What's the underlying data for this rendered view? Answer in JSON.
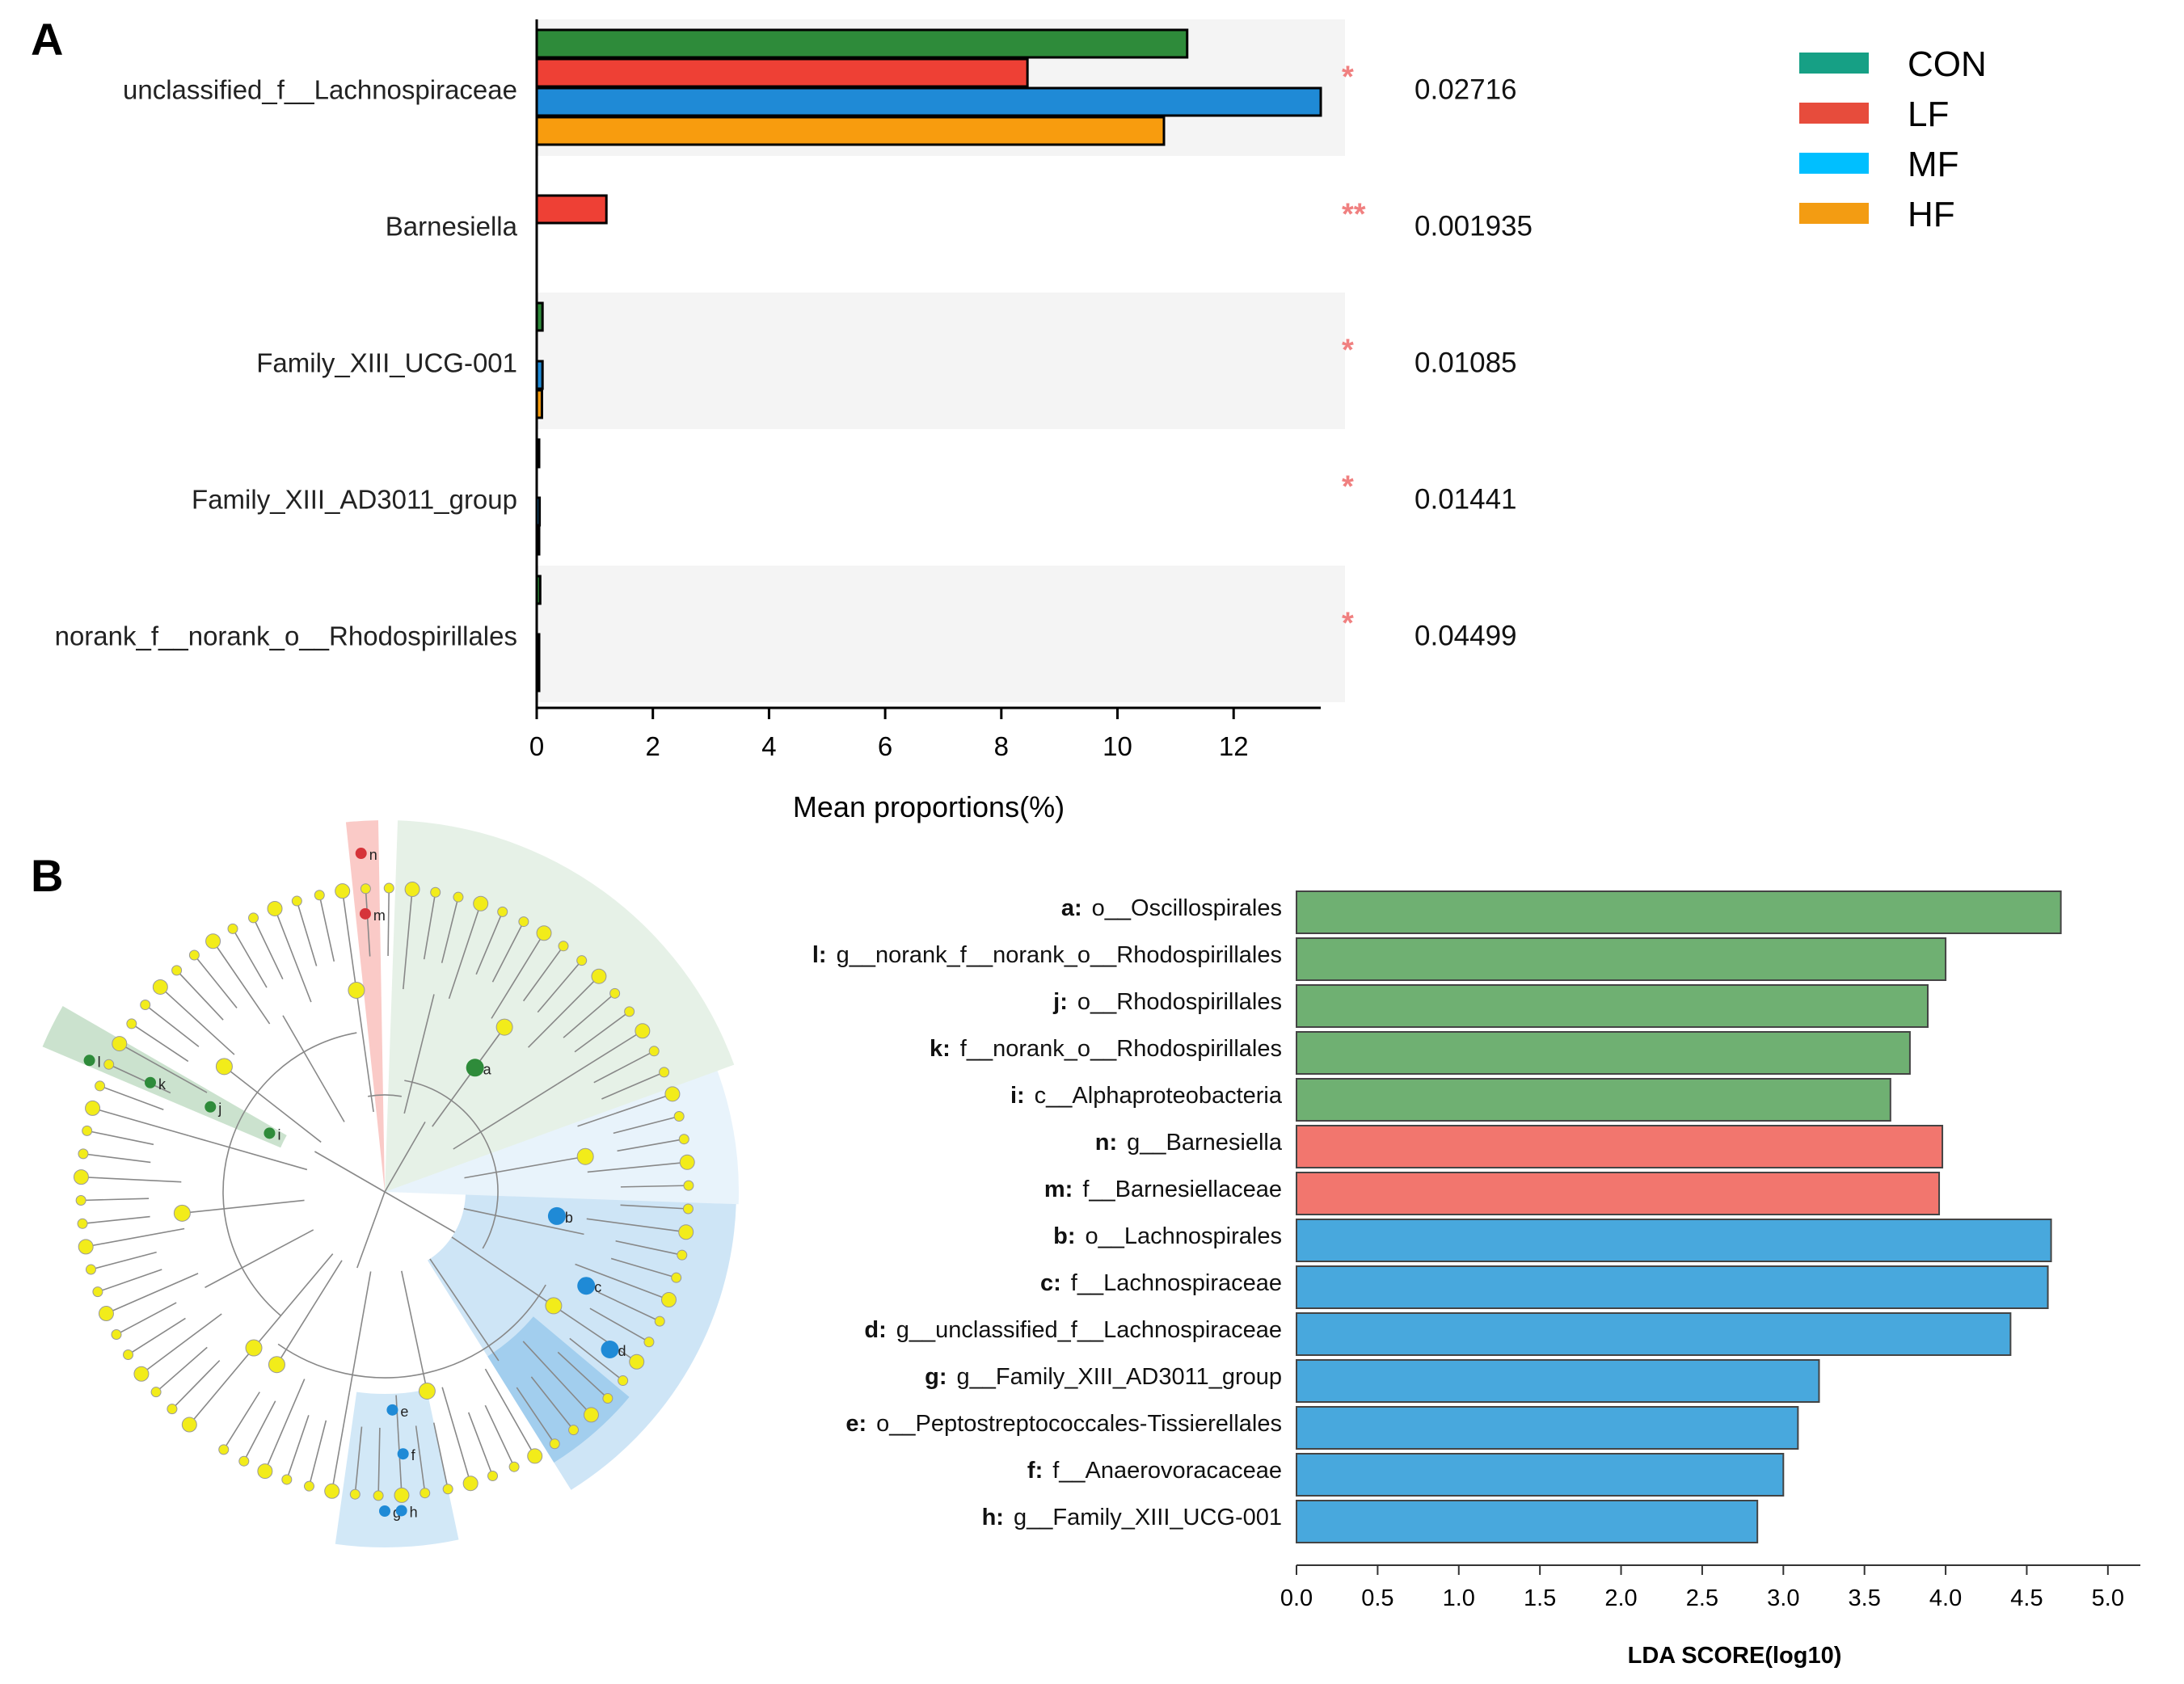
{
  "panel_labels": {
    "a": "A",
    "b": "B"
  },
  "colors": {
    "CON": "#2e8b3a",
    "LF": "#ee4035",
    "MF": "#1f8ad6",
    "HF": "#f89c0e",
    "legend_CON": "#16a085",
    "legend_LF": "#e74c3c",
    "legend_MF": "#00bfff",
    "legend_HF": "#f39c12",
    "lda_CON": "#6fb072",
    "lda_LF": "#f2766e",
    "lda_MF": "#48a8dd",
    "star": "#f08080",
    "band": "#f4f4f4"
  },
  "chart_data": [
    {
      "type": "bar",
      "title": "",
      "xlabel": "Mean proportions(%)",
      "ylabel": "",
      "xlim": [
        0,
        13.5
      ],
      "xticks": [
        "0",
        "2",
        "4",
        "6",
        "8",
        "10",
        "12"
      ],
      "legend": [
        "CON",
        "LF",
        "MF",
        "HF"
      ],
      "categories": [
        "unclassified_f__Lachnospiraceae",
        "Barnesiella",
        "Family_XIII_UCG-001",
        "Family_XIII_AD3011_group",
        "norank_f__norank_o__Rhodospirillales"
      ],
      "series": [
        {
          "name": "CON",
          "values": [
            11.2,
            0.0,
            0.1,
            0.03,
            0.06
          ]
        },
        {
          "name": "LF",
          "values": [
            8.45,
            1.2,
            0.0,
            0.0,
            0.0
          ]
        },
        {
          "name": "MF",
          "values": [
            13.5,
            0.0,
            0.1,
            0.05,
            0.02
          ]
        },
        {
          "name": "HF",
          "values": [
            10.8,
            0.0,
            0.09,
            0.04,
            0.02
          ]
        }
      ],
      "significance": [
        "*",
        "**",
        "*",
        "*",
        "*"
      ],
      "p_values": [
        "0.02716",
        "0.001935",
        "0.01085",
        "0.01441",
        "0.04499"
      ]
    },
    {
      "type": "bar",
      "orientation": "horizontal",
      "title": "",
      "xlabel": "LDA SCORE(log10)",
      "xlim": [
        0,
        5.2
      ],
      "xticks": [
        "0.0",
        "0.5",
        "1.0",
        "1.5",
        "2.0",
        "2.5",
        "3.0",
        "3.5",
        "4.0",
        "4.5",
        "5.0"
      ],
      "bars": [
        {
          "key": "a:",
          "label": "o__Oscillospirales",
          "value": 4.71,
          "group": "CON"
        },
        {
          "key": "l:",
          "label": "g__norank_f__norank_o__Rhodospirillales",
          "value": 4.0,
          "group": "CON"
        },
        {
          "key": "j:",
          "label": "o__Rhodospirillales",
          "value": 3.89,
          "group": "CON"
        },
        {
          "key": "k:",
          "label": "f__norank_o__Rhodospirillales",
          "value": 3.78,
          "group": "CON"
        },
        {
          "key": "i:",
          "label": "c__Alphaproteobacteria",
          "value": 3.66,
          "group": "CON"
        },
        {
          "key": "n:",
          "label": "g__Barnesiella",
          "value": 3.98,
          "group": "LF"
        },
        {
          "key": "m:",
          "label": "f__Barnesiellaceae",
          "value": 3.96,
          "group": "LF"
        },
        {
          "key": "b:",
          "label": "o__Lachnospirales",
          "value": 4.65,
          "group": "MF"
        },
        {
          "key": "c:",
          "label": "f__Lachnospiraceae",
          "value": 4.63,
          "group": "MF"
        },
        {
          "key": "d:",
          "label": "g__unclassified_f__Lachnospiraceae",
          "value": 4.4,
          "group": "MF"
        },
        {
          "key": "g:",
          "label": "g__Family_XIII_AD3011_group",
          "value": 3.22,
          "group": "MF"
        },
        {
          "key": "e:",
          "label": "o__Peptostreptococcales-Tissierellales",
          "value": 3.09,
          "group": "MF"
        },
        {
          "key": "f:",
          "label": "f__Anaerovoracaceae",
          "value": 3.0,
          "group": "MF"
        },
        {
          "key": "h:",
          "label": "g__Family_XIII_UCG-001",
          "value": 2.84,
          "group": "MF"
        }
      ]
    }
  ],
  "cladogram": {
    "node_labels": [
      "a",
      "b",
      "c",
      "d",
      "e",
      "f",
      "g",
      "h",
      "i",
      "j",
      "k",
      "l",
      "m",
      "n"
    ]
  }
}
